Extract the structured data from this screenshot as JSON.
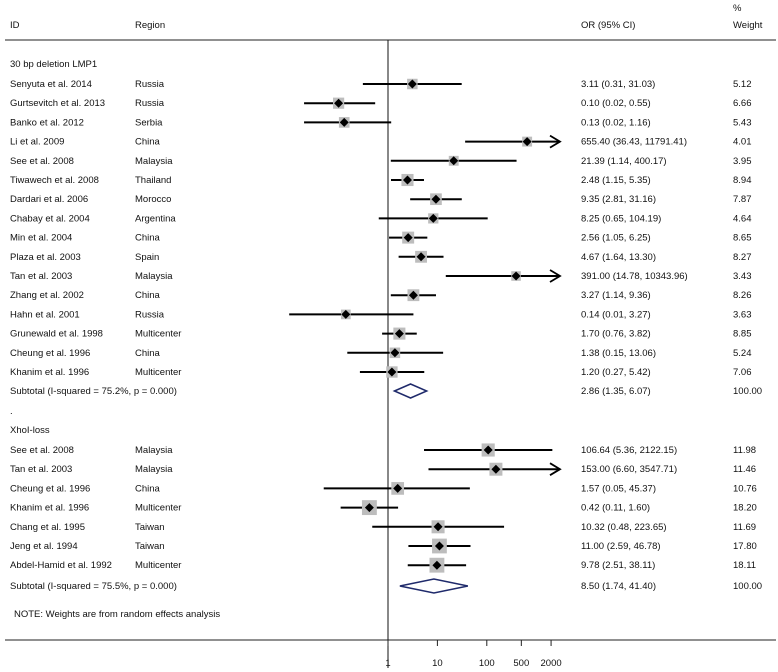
{
  "chart_data": {
    "type": "forest",
    "scale": "log",
    "headers": {
      "id": "ID",
      "region": "Region",
      "or": "OR (95% CI)",
      "weight_pct": "%",
      "weight": "Weight"
    },
    "x_ticks": [
      1,
      10,
      100,
      500,
      2000
    ],
    "groups": [
      {
        "name": "30 bp deletion LMP1",
        "studies": [
          {
            "id": "Senyuta et al. 2014",
            "region": "Russia",
            "or": 3.11,
            "lo": 0.31,
            "hi": 31.03,
            "text": "3.11 (0.31, 31.03)",
            "weight": "5.12"
          },
          {
            "id": "Gurtsevitch et al. 2013",
            "region": "Russia",
            "or": 0.1,
            "lo": 0.02,
            "hi": 0.55,
            "text": "0.10 (0.02, 0.55)",
            "weight": "6.66"
          },
          {
            "id": "Banko et al. 2012",
            "region": "Serbia",
            "or": 0.13,
            "lo": 0.02,
            "hi": 1.16,
            "text": "0.13 (0.02, 1.16)",
            "weight": "5.43"
          },
          {
            "id": "Li et al. 2009",
            "region": "China",
            "or": 655.4,
            "lo": 36.43,
            "hi": 11791.41,
            "text": "655.40 (36.43, 11791.41)",
            "weight": "4.01"
          },
          {
            "id": "See et al. 2008",
            "region": "Malaysia",
            "or": 21.39,
            "lo": 1.14,
            "hi": 400.17,
            "text": "21.39 (1.14, 400.17)",
            "weight": "3.95"
          },
          {
            "id": "Tiwawech et al. 2008",
            "region": "Thailand",
            "or": 2.48,
            "lo": 1.15,
            "hi": 5.35,
            "text": "2.48 (1.15, 5.35)",
            "weight": "8.94"
          },
          {
            "id": "Dardari et al. 2006",
            "region": "Morocco",
            "or": 9.35,
            "lo": 2.81,
            "hi": 31.16,
            "text": "9.35 (2.81, 31.16)",
            "weight": "7.87"
          },
          {
            "id": "Chabay et al. 2004",
            "region": "Argentina",
            "or": 8.25,
            "lo": 0.65,
            "hi": 104.19,
            "text": "8.25 (0.65, 104.19)",
            "weight": "4.64"
          },
          {
            "id": "Min et al. 2004",
            "region": "China",
            "or": 2.56,
            "lo": 1.05,
            "hi": 6.25,
            "text": "2.56 (1.05, 6.25)",
            "weight": "8.65"
          },
          {
            "id": "Plaza et al. 2003",
            "region": "Spain",
            "or": 4.67,
            "lo": 1.64,
            "hi": 13.3,
            "text": "4.67 (1.64, 13.30)",
            "weight": "8.27"
          },
          {
            "id": "Tan et al. 2003",
            "region": "Malaysia",
            "or": 391.0,
            "lo": 14.78,
            "hi": 10343.96,
            "text": "391.00 (14.78, 10343.96)",
            "weight": "3.43"
          },
          {
            "id": "Zhang et al. 2002",
            "region": "China",
            "or": 3.27,
            "lo": 1.14,
            "hi": 9.36,
            "text": "3.27 (1.14, 9.36)",
            "weight": "8.26"
          },
          {
            "id": "Hahn et al. 2001",
            "region": "Russia",
            "or": 0.14,
            "lo": 0.01,
            "hi": 3.27,
            "text": "0.14 (0.01, 3.27)",
            "weight": "3.63"
          },
          {
            "id": "Grunewald et al. 1998",
            "region": "Multicenter",
            "or": 1.7,
            "lo": 0.76,
            "hi": 3.82,
            "text": "1.70 (0.76, 3.82)",
            "weight": "8.85"
          },
          {
            "id": "Cheung et al. 1996",
            "region": "China",
            "or": 1.38,
            "lo": 0.15,
            "hi": 13.06,
            "text": "1.38 (0.15, 13.06)",
            "weight": "5.24"
          },
          {
            "id": "Khanim et al. 1996",
            "region": "Multicenter",
            "or": 1.2,
            "lo": 0.27,
            "hi": 5.42,
            "text": "1.20 (0.27, 5.42)",
            "weight": "7.06"
          }
        ],
        "subtotal": {
          "label": "Subtotal  (I-squared = 75.2%, p = 0.000)",
          "or": 2.86,
          "lo": 1.35,
          "hi": 6.07,
          "text": "2.86 (1.35, 6.07)",
          "weight": "100.00"
        }
      },
      {
        "name": "XhoI-loss",
        "studies": [
          {
            "id": "See et al. 2008",
            "region": "Malaysia",
            "or": 106.64,
            "lo": 5.36,
            "hi": 2122.15,
            "text": "106.64 (5.36, 2122.15)",
            "weight": "11.98"
          },
          {
            "id": "Tan et al. 2003",
            "region": "Malaysia",
            "or": 153.0,
            "lo": 6.6,
            "hi": 3547.71,
            "text": "153.00 (6.60, 3547.71)",
            "weight": "11.46"
          },
          {
            "id": "Cheung et al. 1996",
            "region": "China",
            "or": 1.57,
            "lo": 0.05,
            "hi": 45.37,
            "text": "1.57 (0.05, 45.37)",
            "weight": "10.76"
          },
          {
            "id": "Khanim et al. 1996",
            "region": "Multicenter",
            "or": 0.42,
            "lo": 0.11,
            "hi": 1.6,
            "text": "0.42 (0.11, 1.60)",
            "weight": "18.20"
          },
          {
            "id": "Chang et al. 1995",
            "region": "Taiwan",
            "or": 10.32,
            "lo": 0.48,
            "hi": 223.65,
            "text": "10.32 (0.48, 223.65)",
            "weight": "11.69"
          },
          {
            "id": "Jeng et al. 1994",
            "region": "Taiwan",
            "or": 11.0,
            "lo": 2.59,
            "hi": 46.78,
            "text": "11.00 (2.59, 46.78)",
            "weight": "17.80"
          },
          {
            "id": "Abdel-Hamid et al. 1992",
            "region": "Multicenter",
            "or": 9.78,
            "lo": 2.51,
            "hi": 38.11,
            "text": "9.78 (2.51, 38.11)",
            "weight": "18.11"
          }
        ],
        "subtotal": {
          "label": "Subtotal  (I-squared = 75.5%, p = 0.000)",
          "or": 8.5,
          "lo": 1.74,
          "hi": 41.4,
          "text": "8.50 (1.74, 41.40)",
          "weight": "100.00"
        }
      }
    ],
    "separator": ".",
    "note": "NOTE: Weights are from random effects analysis"
  }
}
